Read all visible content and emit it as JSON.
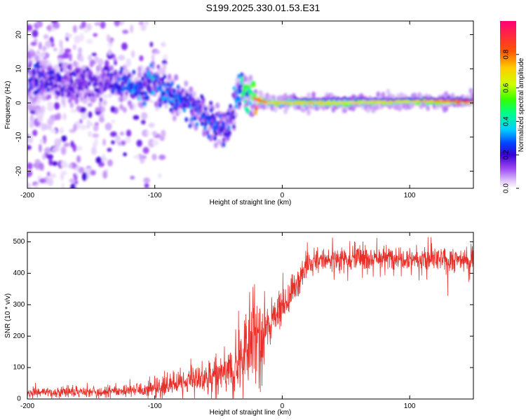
{
  "figure": {
    "title": "S199.2025.330.01.53.E31"
  },
  "chart_data": [
    {
      "type": "heatmap",
      "name": "spectrogram",
      "xlabel": "Height of straight line (km)",
      "ylabel": "Frequency (Hz)",
      "xlim": [
        -200,
        150
      ],
      "ylim": [
        -25,
        24
      ],
      "xticks": [
        -200,
        -100,
        0,
        100
      ],
      "yticks": [
        -20,
        -10,
        0,
        10,
        20
      ],
      "colorbar": {
        "label": "Normalized spectral amplitude",
        "range": [
          0,
          1
        ],
        "ticks": [
          "0.0",
          "0.2",
          "0.4",
          "0.6",
          "0.8"
        ],
        "tick_values": [
          0.0,
          0.2,
          0.4,
          0.6,
          0.8
        ],
        "colors": [
          "#ffffff",
          "#e3cdfa",
          "#9a46f2",
          "#3a00d6",
          "#0044ff",
          "#00ccff",
          "#00ff88",
          "#33ff00",
          "#ccff00",
          "#ffcc00",
          "#ff5500",
          "#ff0077"
        ],
        "color_stops": [
          0.0,
          0.04,
          0.12,
          0.2,
          0.27,
          0.35,
          0.45,
          0.53,
          0.62,
          0.72,
          0.82,
          1.0
        ]
      },
      "ridge": {
        "x": [
          -195,
          -180,
          -160,
          -140,
          -125,
          -110,
          -100,
          -90,
          -80,
          -70,
          -60,
          -50,
          -45,
          -40,
          -35,
          -30,
          -25,
          -20,
          -15,
          -10,
          0,
          20,
          50,
          80,
          100,
          130,
          150
        ],
        "freq": [
          7,
          6,
          6,
          6,
          5.5,
          5,
          6,
          3,
          1,
          -1,
          -4,
          -7,
          -8,
          -6,
          4,
          3,
          2,
          1,
          0.5,
          0,
          0,
          0,
          0,
          0.3,
          0.5,
          0.5,
          0.5
        ],
        "amplitude": [
          0.25,
          0.22,
          0.2,
          0.2,
          0.3,
          0.33,
          0.35,
          0.3,
          0.3,
          0.32,
          0.3,
          0.28,
          0.25,
          0.3,
          0.35,
          0.45,
          0.55,
          0.8,
          0.75,
          0.6,
          0.6,
          0.62,
          0.55,
          0.6,
          0.55,
          0.7,
          0.92
        ]
      },
      "noise_region_x": [
        -200,
        -110
      ]
    },
    {
      "type": "line",
      "name": "snr",
      "xlabel": "Height of straight line (km)",
      "ylabel": "SNR (10 * v/v)",
      "xlim": [
        -200,
        150
      ],
      "ylim": [
        0,
        530
      ],
      "xticks": [
        -200,
        -100,
        0,
        100
      ],
      "yticks": [
        0,
        100,
        200,
        300,
        400,
        500
      ],
      "color": "#e8302a",
      "series": [
        {
          "name": "SNR",
          "x": [
            -200,
            -180,
            -160,
            -140,
            -130,
            -120,
            -110,
            -100,
            -90,
            -80,
            -70,
            -60,
            -50,
            -45,
            -40,
            -35,
            -30,
            -27,
            -25,
            -22,
            -20,
            -18,
            -16,
            -14,
            -12,
            -10,
            -8,
            -5,
            0,
            5,
            10,
            15,
            20,
            25,
            30,
            40,
            50,
            60,
            70,
            80,
            90,
            100,
            110,
            120,
            130,
            140,
            150
          ],
          "values": [
            20,
            20,
            22,
            22,
            25,
            28,
            30,
            35,
            45,
            50,
            60,
            65,
            75,
            80,
            90,
            110,
            150,
            200,
            220,
            230,
            200,
            170,
            150,
            200,
            230,
            240,
            260,
            280,
            290,
            320,
            360,
            400,
            420,
            435,
            440,
            445,
            450,
            450,
            450,
            448,
            455,
            450,
            440,
            445,
            440,
            445,
            440
          ],
          "noise": [
            15,
            15,
            15,
            15,
            16,
            18,
            22,
            25,
            30,
            35,
            40,
            45,
            55,
            65,
            75,
            90,
            120,
            150,
            160,
            140,
            130,
            120,
            110,
            90,
            80,
            70,
            60,
            50,
            45,
            45,
            45,
            45,
            40,
            35,
            35,
            35,
            35,
            35,
            35,
            35,
            38,
            35,
            35,
            35,
            35,
            35,
            35
          ]
        }
      ]
    }
  ]
}
